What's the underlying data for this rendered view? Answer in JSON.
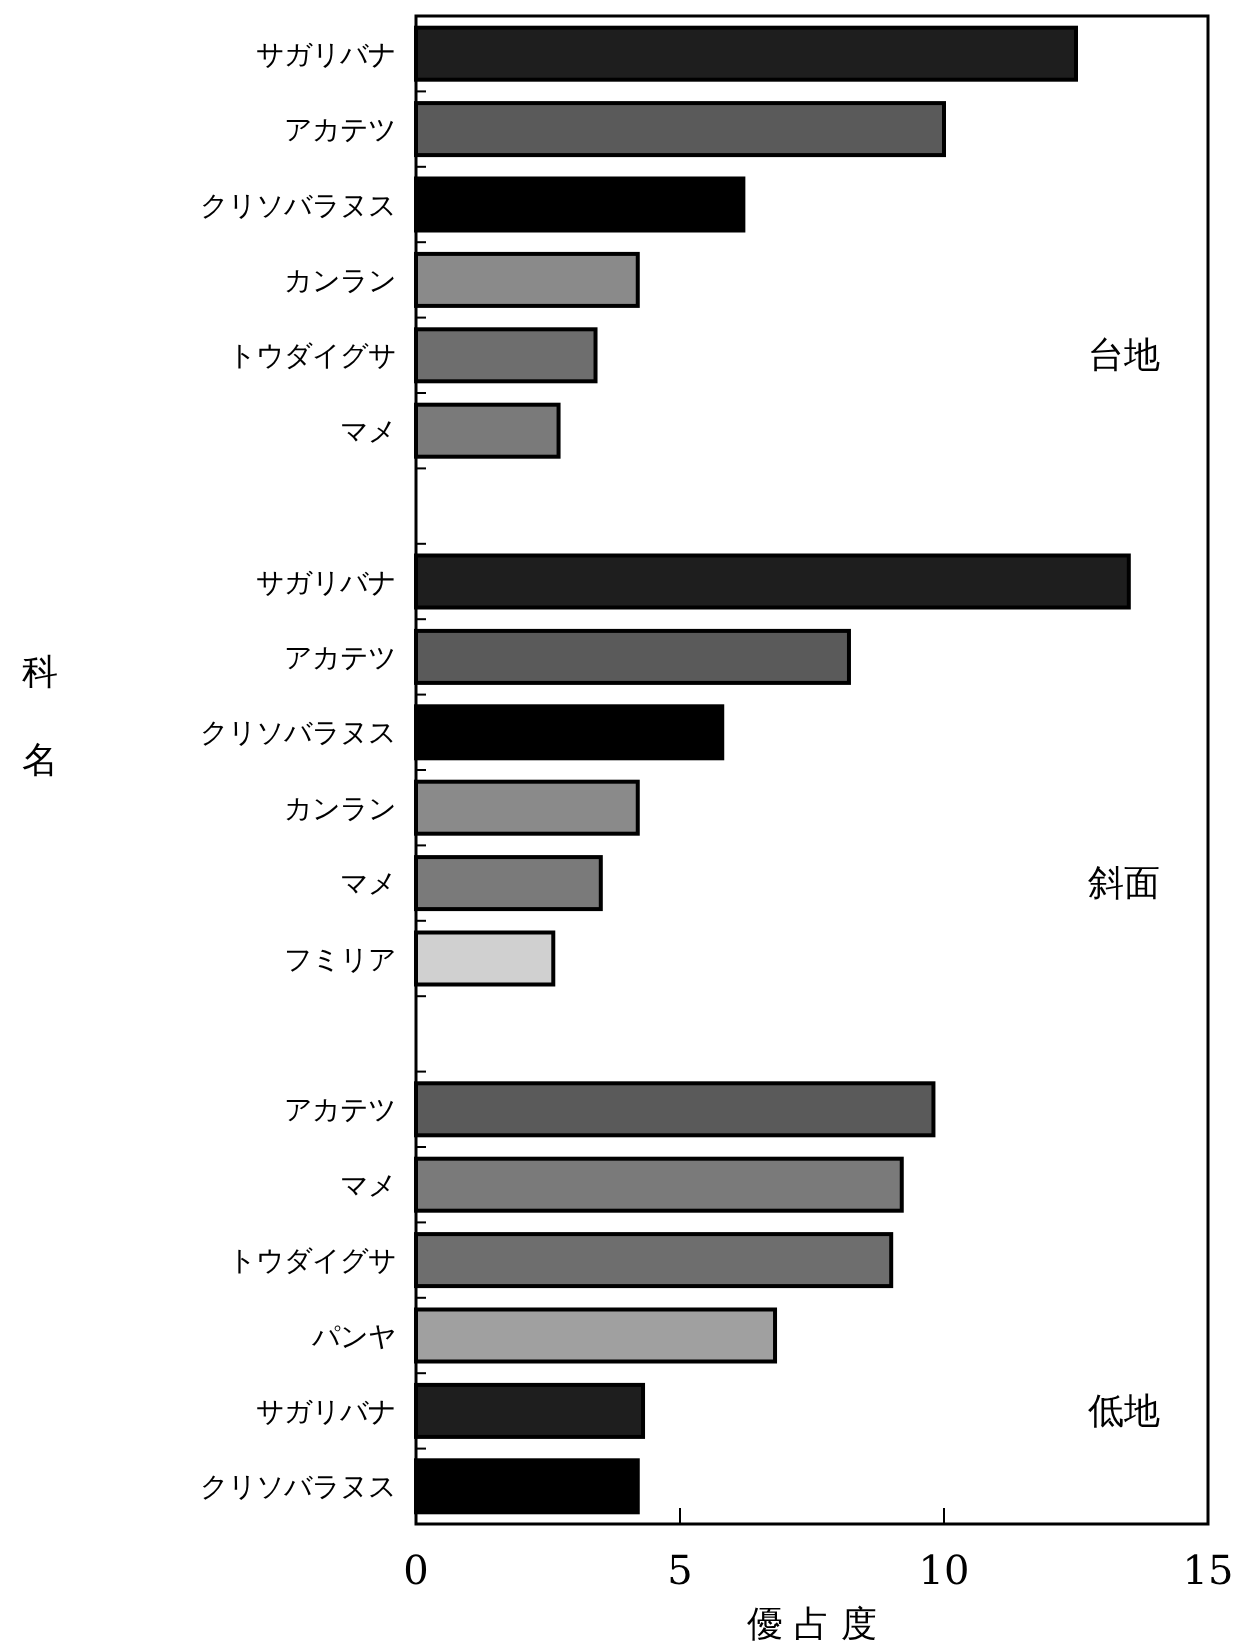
{
  "chart_data": {
    "type": "bar",
    "orientation": "horizontal",
    "xlabel": "優 占 度",
    "ylabel": "科名",
    "categories": [
      "サガリバナ",
      "アカテツ",
      "クリソバラヌス",
      "カンラン",
      "トウダイグサ",
      "マメ",
      null,
      "サガリバナ",
      "アカテツ",
      "クリソバラヌス",
      "カンラン",
      "マメ",
      "フミリア",
      null,
      "アカテツ",
      "マメ",
      "トウダイグサ",
      "パンヤ",
      "サガリバナ",
      "クリソバラヌス"
    ],
    "values": [
      12.5,
      10.0,
      6.2,
      4.2,
      3.4,
      2.7,
      null,
      13.5,
      8.2,
      5.8,
      4.2,
      3.5,
      2.6,
      null,
      9.8,
      9.2,
      9.0,
      6.8,
      4.3,
      4.2
    ],
    "colors": [
      "#1e1e1e",
      "#5a5a5a",
      "#000000",
      "#8a8a8a",
      "#6e6e6e",
      "#7a7a7a",
      null,
      "#1e1e1e",
      "#5a5a5a",
      "#000000",
      "#8a8a8a",
      "#7a7a7a",
      "#d0d0d0",
      null,
      "#5a5a5a",
      "#7a7a7a",
      "#6e6e6e",
      "#a0a0a0",
      "#1e1e1e",
      "#000000"
    ],
    "annotations": [
      "台地",
      "斜面",
      "低地"
    ],
    "xlim": [
      0,
      15
    ],
    "xticks": [
      0,
      5,
      10,
      15
    ]
  }
}
